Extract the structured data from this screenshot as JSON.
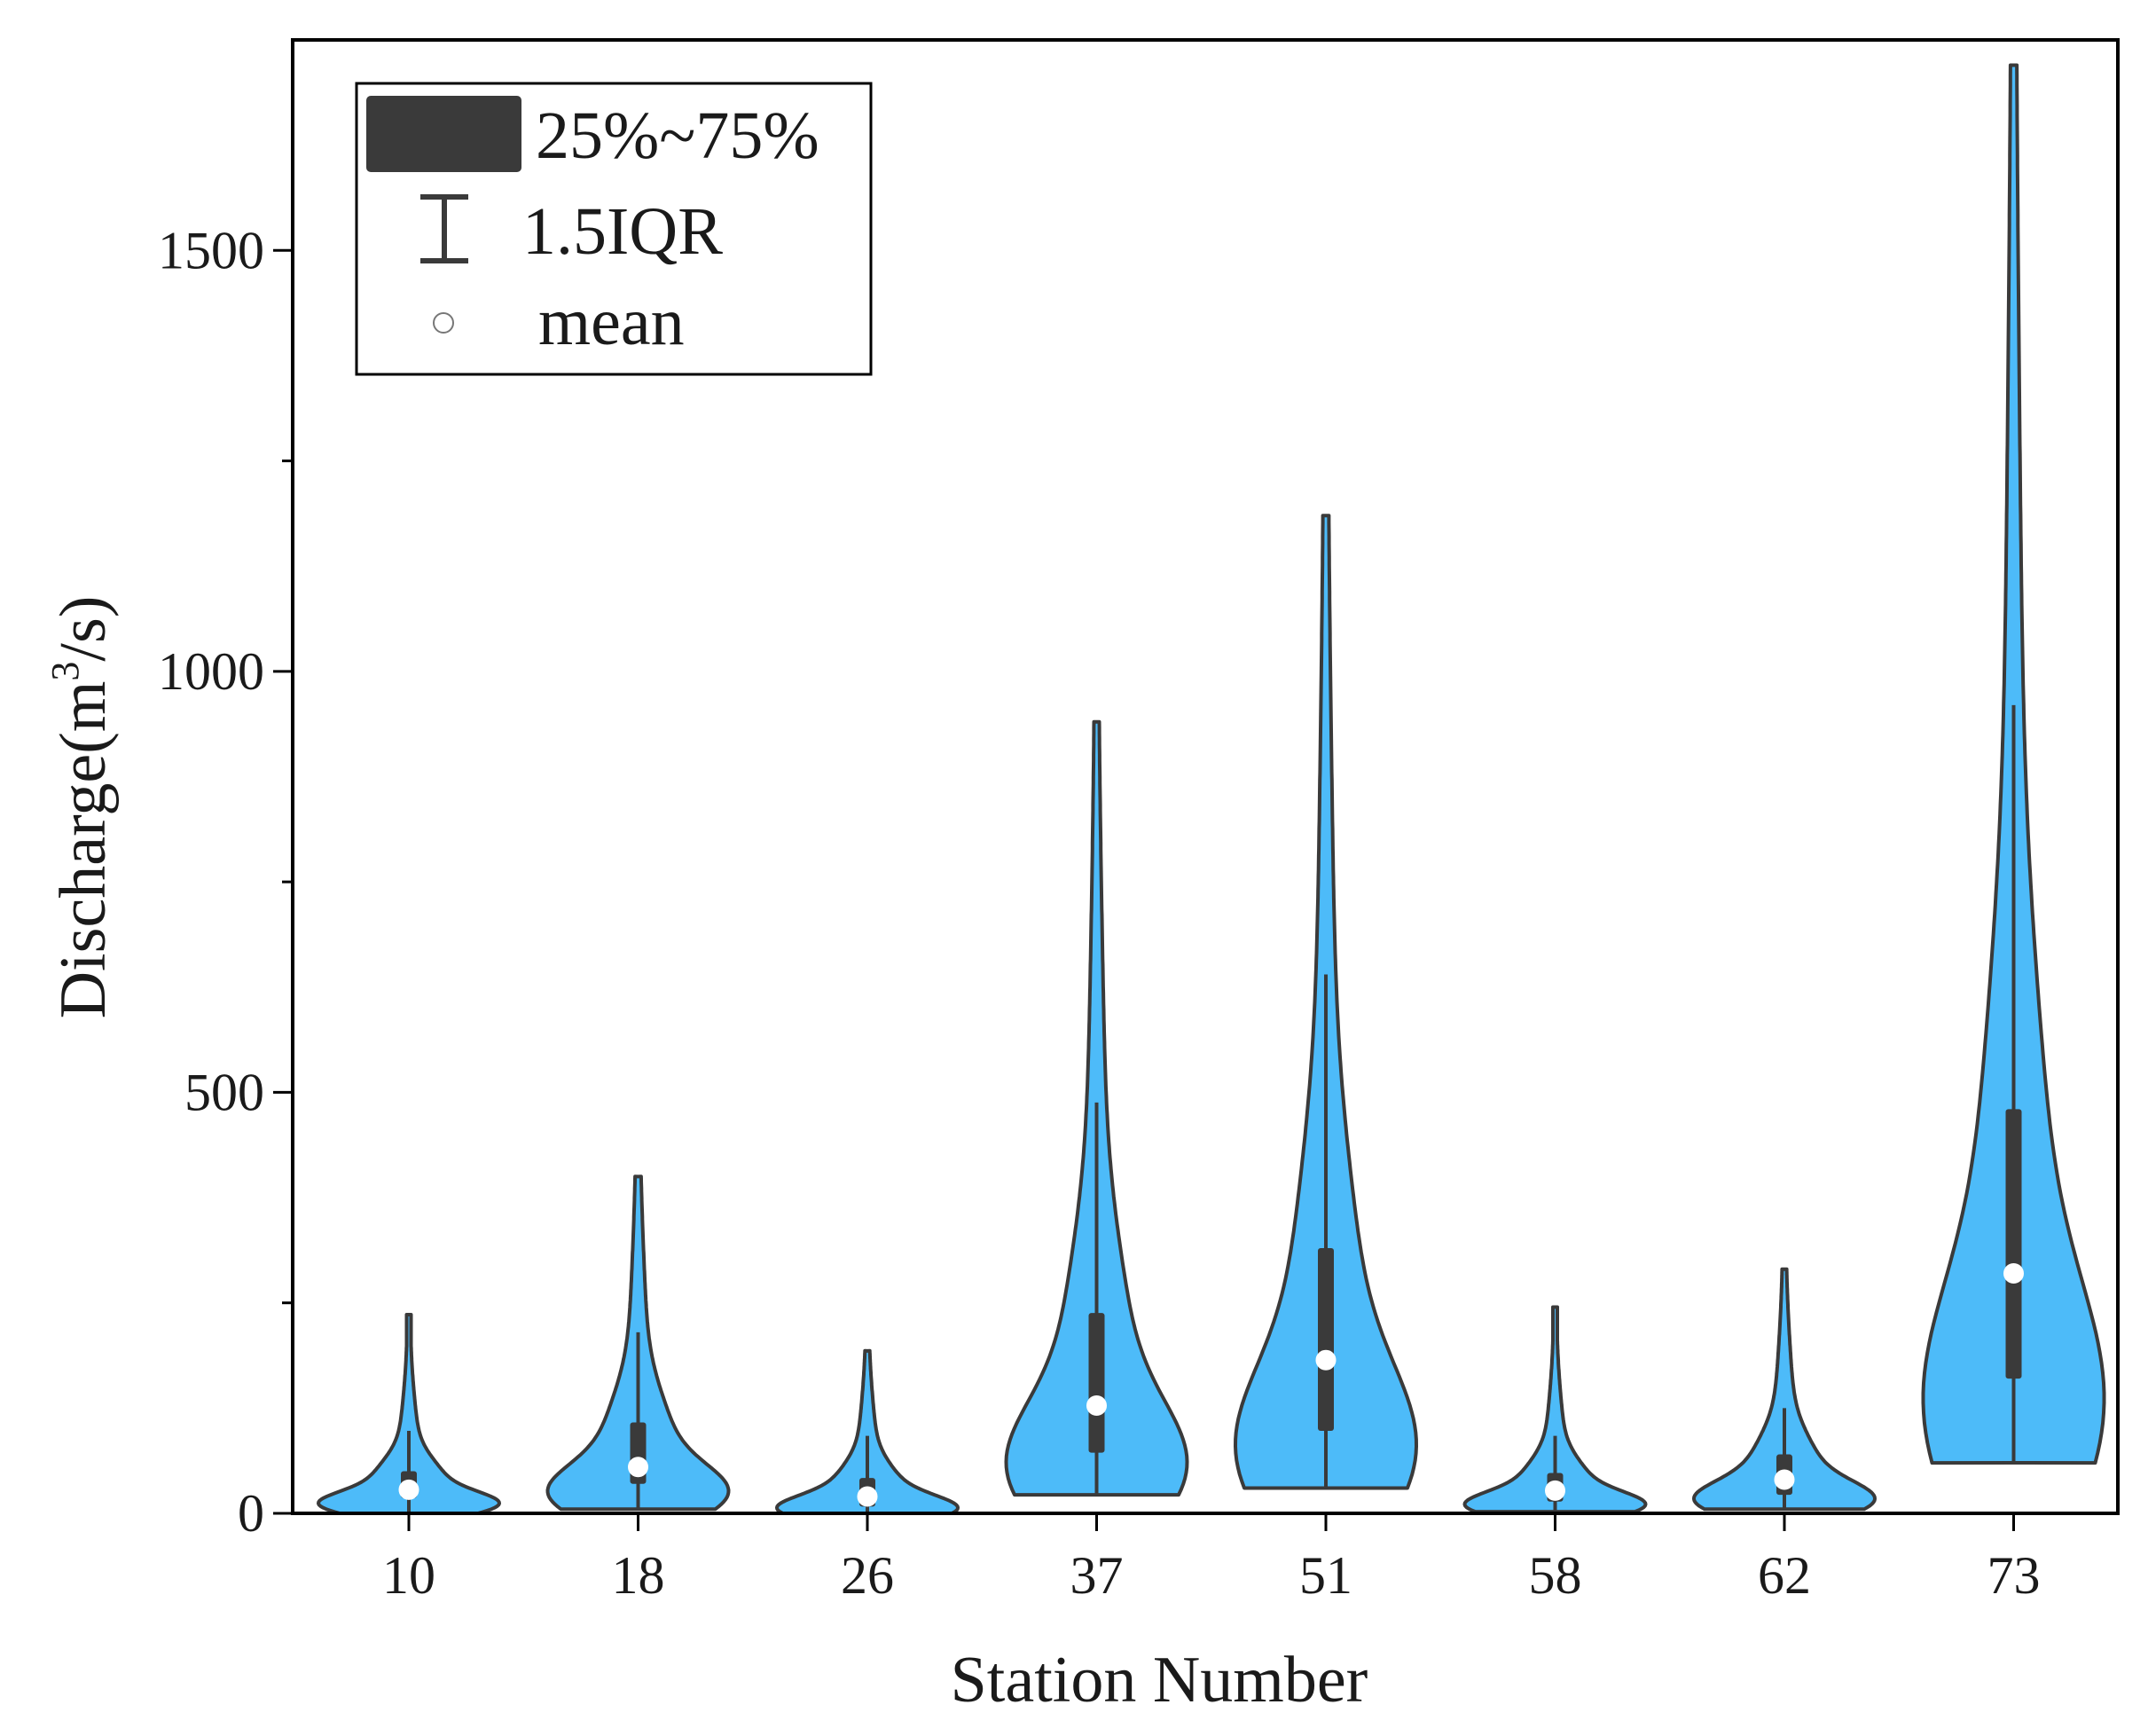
{
  "chart_data": {
    "type": "violin",
    "xlabel": "Station Number",
    "ylabel": "Discharge(m",
    "ylabel_superscript": "3",
    "ylabel_suffix": "/s)",
    "ylim": [
      0,
      1750
    ],
    "yticks_major": [
      0,
      500,
      1000,
      1500
    ],
    "yticks_minor": [
      250,
      750,
      1250
    ],
    "categories": [
      "10",
      "18",
      "26",
      "37",
      "51",
      "58",
      "62",
      "73"
    ],
    "series": [
      {
        "station": "10",
        "min": 0,
        "max": 236,
        "q1": 18,
        "q3": 50,
        "whisker_low": 0,
        "whisker_high": 98,
        "mean": 28
      },
      {
        "station": "18",
        "min": 5,
        "max": 400,
        "q1": 35,
        "q3": 108,
        "whisker_low": 5,
        "whisker_high": 215,
        "mean": 55
      },
      {
        "station": "26",
        "min": 0,
        "max": 193,
        "q1": 8,
        "q3": 42,
        "whisker_low": 0,
        "whisker_high": 92,
        "mean": 20
      },
      {
        "station": "37",
        "min": 22,
        "max": 940,
        "q1": 72,
        "q3": 238,
        "whisker_low": 22,
        "whisker_high": 488,
        "mean": 128
      },
      {
        "station": "51",
        "min": 30,
        "max": 1185,
        "q1": 98,
        "q3": 315,
        "whisker_low": 30,
        "whisker_high": 640,
        "mean": 182
      },
      {
        "station": "58",
        "min": 2,
        "max": 245,
        "q1": 14,
        "q3": 48,
        "whisker_low": 2,
        "whisker_high": 92,
        "mean": 27
      },
      {
        "station": "62",
        "min": 5,
        "max": 290,
        "q1": 22,
        "q3": 70,
        "whisker_low": 5,
        "whisker_high": 125,
        "mean": 40
      },
      {
        "station": "73",
        "min": 60,
        "max": 1720,
        "q1": 160,
        "q3": 480,
        "whisker_low": 60,
        "whisker_high": 960,
        "mean": 285
      }
    ],
    "legend": {
      "position": "top-left",
      "entries": [
        {
          "kind": "box",
          "label": "25%~75%"
        },
        {
          "kind": "whisker",
          "label": "1.5IQR"
        },
        {
          "kind": "mean",
          "label": "mean"
        }
      ]
    }
  },
  "colors": {
    "violin_fill": "#4dbbf9",
    "outline": "#3a3a3a",
    "box": "#3a3a3a",
    "mean": "#ffffff",
    "axis": "#000000"
  }
}
